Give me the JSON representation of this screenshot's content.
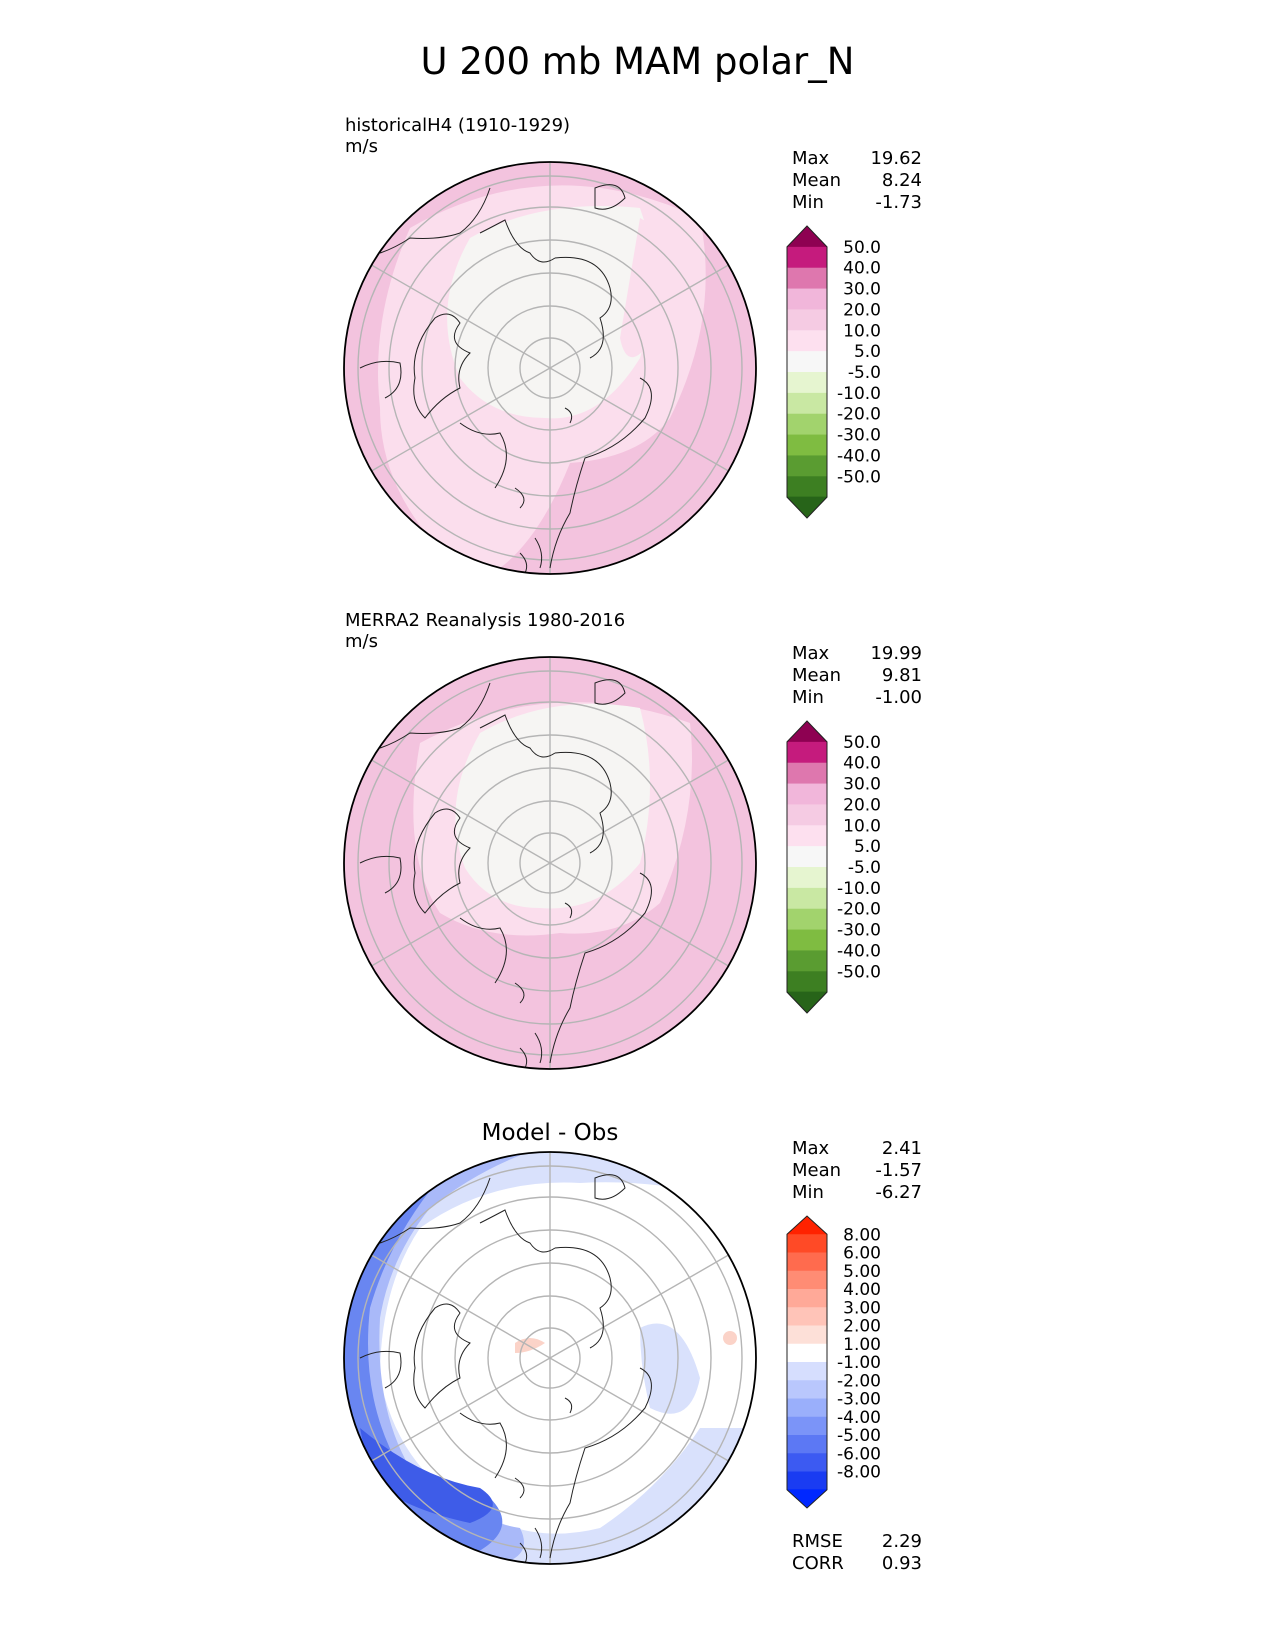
{
  "title": "U 200 mb MAM polar_N",
  "panels": [
    {
      "id": "model",
      "label": "historicalH4 (1910-1929)",
      "units": "m/s",
      "stats": [
        {
          "name": "Max",
          "value": "19.62"
        },
        {
          "name": "Mean",
          "value": "8.24"
        },
        {
          "name": "Min",
          "value": "-1.73"
        }
      ]
    },
    {
      "id": "obs",
      "label": "MERRA2 Reanalysis 1980-2016",
      "units": "m/s",
      "stats": [
        {
          "name": "Max",
          "value": "19.99"
        },
        {
          "name": "Mean",
          "value": "9.81"
        },
        {
          "name": "Min",
          "value": "-1.00"
        }
      ]
    },
    {
      "id": "diff",
      "title": "Model - Obs",
      "stats": [
        {
          "name": "Max",
          "value": "2.41"
        },
        {
          "name": "Mean",
          "value": "-1.57"
        },
        {
          "name": "Min",
          "value": "-6.27"
        }
      ],
      "metrics": [
        {
          "name": "RMSE",
          "value": "2.29"
        },
        {
          "name": "CORR",
          "value": "0.93"
        }
      ]
    }
  ],
  "colorbar_main": {
    "ticks": [
      "50.0",
      "40.0",
      "30.0",
      "20.0",
      "10.0",
      "5.0",
      "-5.0",
      "-10.0",
      "-20.0",
      "-30.0",
      "-40.0",
      "-50.0"
    ],
    "colors": [
      "#8e0152",
      "#c51b7d",
      "#de77ae",
      "#f1b6da",
      "#f5cbe3",
      "#fde0ef",
      "#f7f7f7",
      "#e6f5d0",
      "#c9e8a3",
      "#a2d36d",
      "#7fbc41",
      "#5a9c31",
      "#3d7f22",
      "#276419"
    ]
  },
  "colorbar_diff": {
    "ticks": [
      "8.00",
      "6.00",
      "5.00",
      "4.00",
      "3.00",
      "2.00",
      "1.00",
      "-1.00",
      "-2.00",
      "-3.00",
      "-4.00",
      "-5.00",
      "-6.00",
      "-8.00"
    ],
    "colors": [
      "#ff2200",
      "#ff4a26",
      "#ff6b4e",
      "#ff8c74",
      "#ffa998",
      "#ffc4b8",
      "#fde0d8",
      "#ffffff",
      "#d6defe",
      "#b9c7fd",
      "#9aaffb",
      "#7b94f8",
      "#5c78f4",
      "#3c5af2",
      "#1a3cf2",
      "#0028ff"
    ]
  },
  "map_colors": {
    "model_outer": "#f3c3de",
    "model_mid": "#fbdeed",
    "model_inner": "#f6f5f3",
    "obs_outer": "#f3c3de",
    "obs_mid": "#fbdeed",
    "obs_inner": "#f6f5f3",
    "diff_base": "#ffffff",
    "diff_light": "#d9e1fc",
    "diff_mid": "#a9b9f9",
    "diff_strong": "#6986f1",
    "diff_deep": "#3e5ce8",
    "diff_pos": "#fbd3c8"
  }
}
